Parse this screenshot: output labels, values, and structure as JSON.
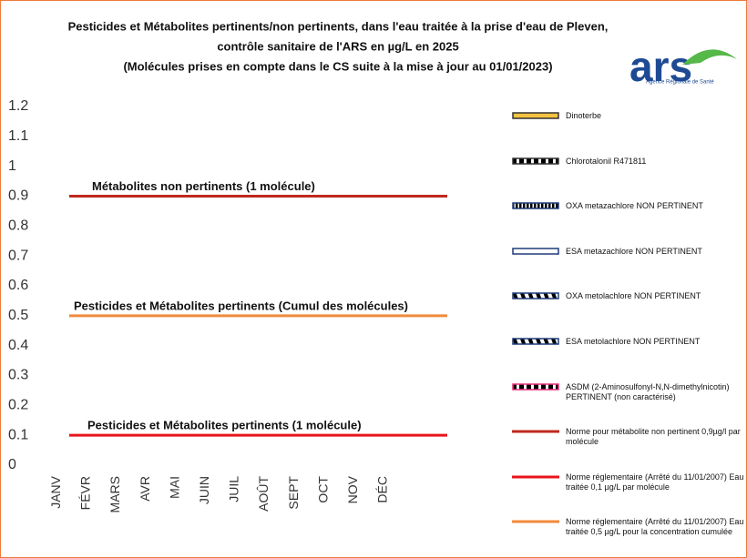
{
  "chart_data": {
    "type": "bar",
    "stacked": true,
    "title": [
      "Pesticides et Métabolites pertinents/non pertinents, dans l'eau traitée à la prise d'eau de Pleven,",
      "contrôle sanitaire de l'ARS en µg/L en 2025",
      "(Molécules prises en compte dans le CS suite à la mise à jour au 01/01/2023)"
    ],
    "logo": {
      "text": "ars",
      "subtext": "Agence Régionale de Santé"
    },
    "categories": [
      "JANV",
      "FÉVR",
      "MARS",
      "AVR",
      "MAI",
      "JUIN",
      "JUIL",
      "AOÛT",
      "SEPT",
      "OCT",
      "NOV",
      "DÉC"
    ],
    "ylim": [
      0,
      1.2
    ],
    "yticks": [
      0,
      0.1,
      0.2,
      0.3,
      0.4,
      0.5,
      0.6,
      0.7,
      0.8,
      0.9,
      1,
      1.1,
      1.2
    ],
    "grid": false,
    "legend": "right",
    "series": [
      {
        "name": "Dinoterbe",
        "type": "bar",
        "color": "#f5c242",
        "border": "#333333",
        "pattern": "solid",
        "values": [
          0,
          0,
          0,
          0,
          0,
          0,
          0,
          0,
          0,
          0,
          0,
          0
        ]
      },
      {
        "name": "Chlorotalonil R471811",
        "type": "bar",
        "color": "#e8b21a",
        "border": "#333333",
        "pattern": "dashed",
        "values": [
          0,
          0,
          0,
          0,
          0,
          0,
          0,
          0,
          0,
          0,
          0,
          0
        ]
      },
      {
        "name": "OXA metazachlore NON PERTINENT",
        "type": "bar",
        "color": "#2f5aa8",
        "border": "#1f3c78",
        "pattern": "dotted",
        "values": [
          0,
          0,
          0,
          0,
          0,
          0,
          0,
          0,
          0,
          0,
          0,
          0
        ]
      },
      {
        "name": "ESA metazachlore NON PERTINENT",
        "type": "bar",
        "color": "#ffffff",
        "border": "#1f3c78",
        "pattern": "solid",
        "values": [
          0,
          0,
          0,
          0,
          0,
          0,
          0,
          0,
          0,
          0,
          0,
          0
        ]
      },
      {
        "name": "OXA metolachlore NON PERTINENT",
        "type": "bar",
        "color": "#5a78b8",
        "border": "#1f3c78",
        "pattern": "diagonal",
        "values": [
          0,
          0,
          0,
          0,
          0,
          0,
          0,
          0,
          0,
          0,
          0,
          0
        ]
      },
      {
        "name": "ESA metolachlore NON PERTINENT",
        "type": "bar",
        "color": "#1f3c78",
        "border": "#1f3c78",
        "pattern": "diagonal",
        "values": [
          0,
          0,
          0,
          0,
          0,
          0,
          0,
          0,
          0,
          0,
          0,
          0
        ]
      },
      {
        "name": "ASDM (2-Aminosulfonyl-N,N-dimethylnicotin) PERTINENT (non caractérisé)",
        "type": "bar",
        "color": "#e8307a",
        "border": "#e8307a",
        "pattern": "dashed",
        "values": [
          0,
          0,
          0,
          0,
          0,
          0,
          0,
          0,
          0,
          0,
          0,
          0
        ]
      },
      {
        "name": "Norme pour métabolite non pertinent 0,9µg/l par molécule",
        "type": "line",
        "color": "#c0281e",
        "annotation": "Métabolites non pertinents (1 molécule)",
        "values": [
          0.9,
          0.9,
          0.9,
          0.9,
          0.9,
          0.9,
          0.9,
          0.9,
          0.9,
          0.9,
          0.9,
          0.9
        ]
      },
      {
        "name": "Norme réglementaire  (Arrêté du 11/01/2007) Eau traitée 0,1 µg/L par molécule",
        "type": "line",
        "color": "#e8141b",
        "annotation": "Pesticides et Métabolites pertinents (1 molécule)",
        "values": [
          0.1,
          0.1,
          0.1,
          0.1,
          0.1,
          0.1,
          0.1,
          0.1,
          0.1,
          0.1,
          0.1,
          0.1
        ]
      },
      {
        "name": "Norme réglementaire (Arrêté du 11/01/2007) Eau traitée 0,5 µg/L pour la concentration cumulée",
        "type": "line",
        "color": "#f08a3c",
        "annotation": "Pesticides et Métabolites pertinents (Cumul des molécules)",
        "values": [
          0.5,
          0.5,
          0.5,
          0.5,
          0.5,
          0.5,
          0.5,
          0.5,
          0.5,
          0.5,
          0.5,
          0.5
        ]
      }
    ]
  }
}
